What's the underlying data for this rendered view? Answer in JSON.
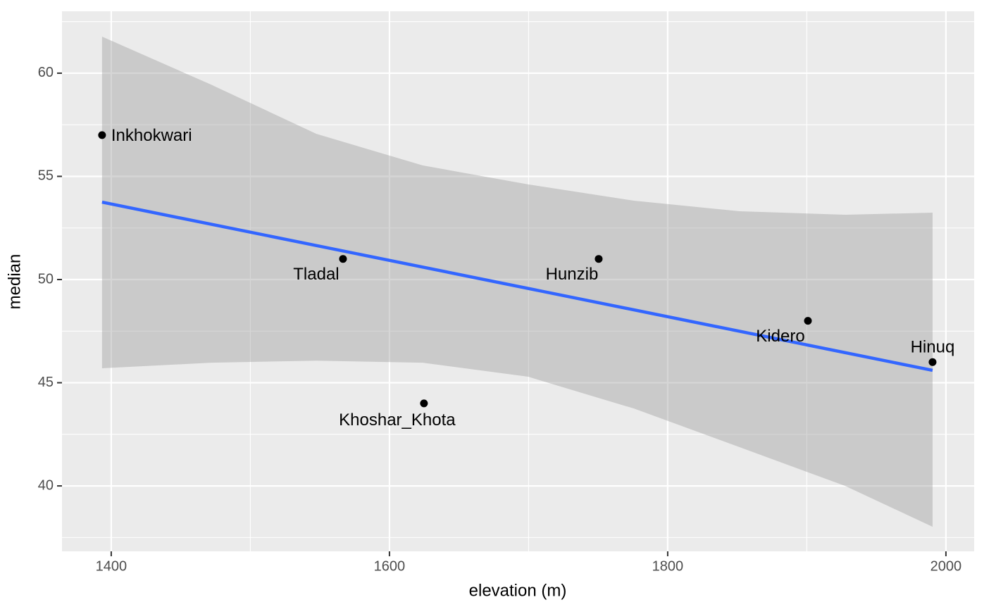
{
  "chart_data": {
    "type": "scatter",
    "x_label": "elevation (m)",
    "y_label": "median",
    "xlim": [
      1364.6,
      2020.3
    ],
    "ylim": [
      36.83,
      63.0
    ],
    "xticks": [
      1400,
      1600,
      1800,
      2000
    ],
    "yticks": [
      40,
      45,
      50,
      55,
      60
    ],
    "grid": true,
    "points": {
      "labels": [
        "Inkhokwari",
        "Tladal",
        "Khoshar_Khota",
        "Hunzib",
        "Kidero",
        "Hinuq"
      ],
      "x": [
        1393.4,
        1566.6,
        1624.8,
        1750.4,
        1900.8,
        1990.4
      ],
      "y": [
        57,
        51,
        44,
        51,
        48,
        46
      ],
      "color": "#000000"
    },
    "fit": {
      "x": [
        1393.4,
        1990.4
      ],
      "y": [
        53.75,
        45.6
      ],
      "color": "#3366ff"
    },
    "band": {
      "x": [
        1393.4,
        1471.6,
        1547.5,
        1623.8,
        1699.7,
        1775.7,
        1851.6,
        1927.6,
        1990.4
      ],
      "upper": [
        61.77,
        59.45,
        57.06,
        55.53,
        54.61,
        53.82,
        53.31,
        53.14,
        53.24
      ],
      "lower": [
        45.7,
        45.97,
        46.07,
        45.97,
        45.29,
        43.75,
        41.88,
        40.0,
        38.02
      ],
      "color": "#999999"
    }
  }
}
